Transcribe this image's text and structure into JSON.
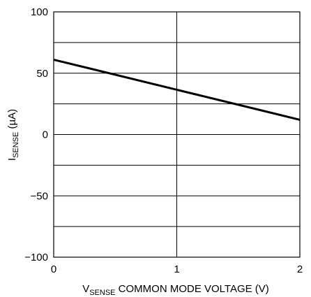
{
  "chart_data": {
    "type": "line",
    "xlabel": {
      "prefix": "V",
      "subscript": "SENSE",
      "rest": " COMMON MODE VOLTAGE (V)"
    },
    "ylabel": {
      "prefix": "I",
      "subscript": "SENSE",
      "rest": " (µA)"
    },
    "xlim": [
      0,
      2
    ],
    "ylim": [
      -100,
      100
    ],
    "x_ticks": [
      0,
      1,
      2
    ],
    "x_tick_labels": [
      "0",
      "1",
      "2"
    ],
    "y_ticks": [
      100,
      50,
      0,
      -50,
      -100
    ],
    "y_tick_labels": [
      "100",
      "50",
      "0",
      "−50",
      "−100"
    ],
    "grid": true,
    "series": [
      {
        "x": [
          0,
          2
        ],
        "y": [
          61,
          12
        ],
        "color": "#000000"
      }
    ]
  }
}
